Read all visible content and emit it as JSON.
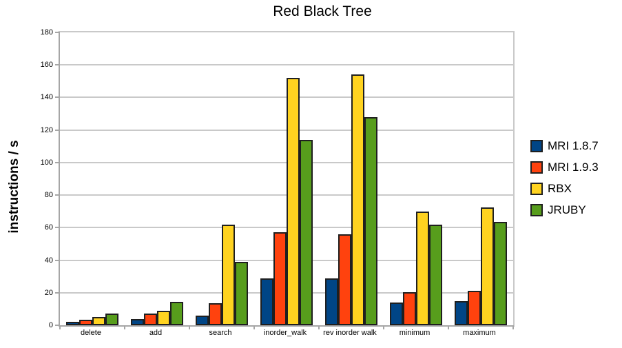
{
  "chart_data": {
    "type": "bar",
    "title": "Red Black Tree",
    "ylabel": "instructions / s",
    "xlabel": "",
    "categories": [
      "delete",
      "add",
      "search",
      "inorder_walk",
      "rev inorder walk",
      "minimum",
      "maximum"
    ],
    "series": [
      {
        "name": "MRI 1.8.7",
        "color": "#004586",
        "values": [
          2,
          4,
          6,
          29,
          29,
          14,
          15
        ]
      },
      {
        "name": "MRI 1.9.3",
        "color": "#ff420e",
        "values": [
          3.5,
          7,
          13.5,
          57,
          56,
          20.5,
          21
        ]
      },
      {
        "name": "RBX",
        "color": "#ffd320",
        "values": [
          5,
          9,
          62,
          152,
          154,
          70,
          72.5
        ]
      },
      {
        "name": "JRUBY",
        "color": "#579d1c",
        "values": [
          7,
          14.5,
          39,
          114,
          128,
          62,
          63.5
        ]
      }
    ],
    "ylim": [
      0,
      180
    ],
    "ytick_step": 20,
    "y_tick_labels": [
      "0",
      "20",
      "40",
      "60",
      "80",
      "100",
      "120",
      "140",
      "160",
      "180"
    ],
    "grid": true,
    "legend_position": "right"
  },
  "style": {
    "background": "#ffffff",
    "grid_color": "#c9c9c9",
    "axis_color": "#a6a6a6",
    "bar_border_color": "#1f1f1f",
    "text_color": "#000000"
  }
}
